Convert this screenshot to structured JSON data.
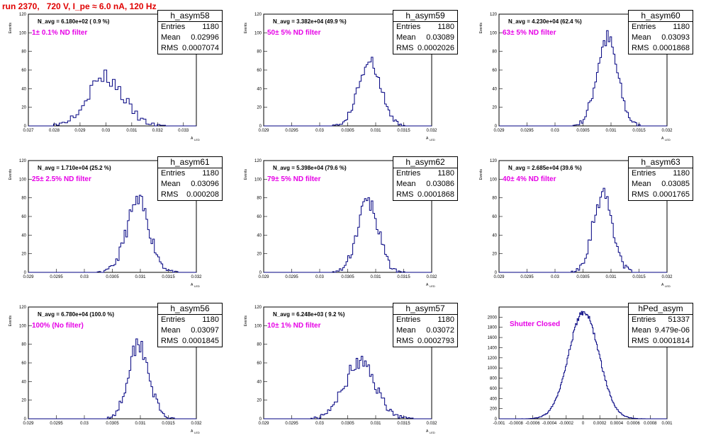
{
  "title": "run 2370,   720 V, I_pe ≈ 6.0 nA, 120 Hz",
  "colors": {
    "hist": "#000080",
    "title": "#e00000",
    "filter_label": "#e600e6"
  },
  "chart_data": [
    {
      "type": "bar",
      "hist_name": "h_asym58",
      "entries": "1180",
      "mean": "0.02996",
      "rms": "0.0007074",
      "n_avg": "N_avg = 6.180e+02 ( 0.9 %)",
      "filter_label": "1± 0.1% ND filter",
      "xlabel": "A",
      "x_sub": "LED",
      "ylabel": "Events",
      "xlim": [
        0.027,
        0.0335
      ],
      "ylim": [
        0,
        120
      ],
      "xticks": [
        "0.027",
        "0.028",
        "0.029",
        "0.03",
        "0.031",
        "0.032",
        "0.033"
      ],
      "yticks": [
        "0",
        "20",
        "40",
        "60",
        "80",
        "100",
        "120"
      ],
      "hist": {
        "mean": 0.02996,
        "rms": 0.0007074,
        "peak": 52,
        "bins": 60,
        "seed": 3
      }
    },
    {
      "type": "bar",
      "hist_name": "h_asym59",
      "entries": "1180",
      "mean": "0.03089",
      "rms": "0.0002026",
      "n_avg": "N_avg = 3.382e+04 (49.9 %)",
      "filter_label": "50± 5% ND filter",
      "xlabel": "A",
      "x_sub": "LED",
      "ylabel": "Events",
      "xlim": [
        0.029,
        0.032
      ],
      "ylim": [
        0,
        120
      ],
      "xticks": [
        "0.029",
        "0.0295",
        "0.03",
        "0.0305",
        "0.031",
        "0.0315",
        "0.032"
      ],
      "yticks": [
        "0",
        "20",
        "40",
        "60",
        "80",
        "100",
        "120"
      ],
      "hist": {
        "mean": 0.03089,
        "rms": 0.0002026,
        "peak": 67,
        "bins": 100,
        "seed": 5
      }
    },
    {
      "type": "bar",
      "hist_name": "h_asym60",
      "entries": "1180",
      "mean": "0.03093",
      "rms": "0.0001868",
      "n_avg": "N_avg = 4.230e+04 (62.4 %)",
      "filter_label": "63± 5% ND filter",
      "xlabel": "A",
      "x_sub": "LED",
      "ylabel": "Events",
      "xlim": [
        0.029,
        0.032
      ],
      "ylim": [
        0,
        120
      ],
      "xticks": [
        "0.029",
        "0.0295",
        "0.03",
        "0.0305",
        "0.031",
        "0.0315",
        "0.032"
      ],
      "yticks": [
        "0",
        "20",
        "40",
        "60",
        "80",
        "100",
        "120"
      ],
      "hist": {
        "mean": 0.03093,
        "rms": 0.0001868,
        "peak": 93,
        "bins": 100,
        "seed": 7
      }
    },
    {
      "type": "bar",
      "hist_name": "h_asym61",
      "entries": "1180",
      "mean": "0.03096",
      "rms": "0.000208",
      "n_avg": "N_avg = 1.710e+04 (25.2 %)",
      "filter_label": "25± 2.5% ND filter",
      "xlabel": "A",
      "x_sub": "LED",
      "ylabel": "Events",
      "xlim": [
        0.029,
        0.032
      ],
      "ylim": [
        0,
        120
      ],
      "xticks": [
        "0.029",
        "0.0295",
        "0.03",
        "0.0305",
        "0.031",
        "0.0315",
        "0.032"
      ],
      "yticks": [
        "0",
        "20",
        "40",
        "60",
        "80",
        "100",
        "120"
      ],
      "hist": {
        "mean": 0.03096,
        "rms": 0.000208,
        "peak": 75,
        "bins": 100,
        "seed": 11
      }
    },
    {
      "type": "bar",
      "hist_name": "h_asym62",
      "entries": "1180",
      "mean": "0.03086",
      "rms": "0.0001868",
      "n_avg": "N_avg = 5.398e+04 (79.6 %)",
      "filter_label": "79± 5% ND filter",
      "xlabel": "A",
      "x_sub": "LED",
      "ylabel": "Events",
      "xlim": [
        0.029,
        0.032
      ],
      "ylim": [
        0,
        120
      ],
      "xticks": [
        "0.029",
        "0.0295",
        "0.03",
        "0.0305",
        "0.031",
        "0.0315",
        "0.032"
      ],
      "yticks": [
        "0",
        "20",
        "40",
        "60",
        "80",
        "100",
        "120"
      ],
      "hist": {
        "mean": 0.03086,
        "rms": 0.0001868,
        "peak": 76,
        "bins": 100,
        "seed": 13
      }
    },
    {
      "type": "bar",
      "hist_name": "h_asym63",
      "entries": "1180",
      "mean": "0.03085",
      "rms": "0.0001765",
      "n_avg": "N_avg = 2.685e+04 (39.6 %)",
      "filter_label": "40± 4% ND filter",
      "xlabel": "A",
      "x_sub": "LED",
      "ylabel": "Events",
      "xlim": [
        0.029,
        0.032
      ],
      "ylim": [
        0,
        120
      ],
      "xticks": [
        "0.029",
        "0.0295",
        "0.03",
        "0.0305",
        "0.031",
        "0.0315",
        "0.032"
      ],
      "yticks": [
        "0",
        "20",
        "40",
        "60",
        "80",
        "100",
        "120"
      ],
      "hist": {
        "mean": 0.03085,
        "rms": 0.0001765,
        "peak": 85,
        "bins": 100,
        "seed": 17
      }
    },
    {
      "type": "bar",
      "hist_name": "h_asym56",
      "entries": "1180",
      "mean": "0.03097",
      "rms": "0.0001845",
      "n_avg": "N_avg = 6.780e+04 (100.0 %)",
      "filter_label": "100% (No filter)",
      "xlabel": "A",
      "x_sub": "LED",
      "ylabel": "Events",
      "xlim": [
        0.029,
        0.032
      ],
      "ylim": [
        0,
        120
      ],
      "xticks": [
        "0.029",
        "0.0295",
        "0.03",
        "0.0305",
        "0.031",
        "0.0315",
        "0.032"
      ],
      "yticks": [
        "0",
        "20",
        "40",
        "60",
        "80",
        "100",
        "120"
      ],
      "hist": {
        "mean": 0.03097,
        "rms": 0.0001845,
        "peak": 82,
        "bins": 100,
        "seed": 19
      }
    },
    {
      "type": "bar",
      "hist_name": "h_asym57",
      "entries": "1180",
      "mean": "0.03072",
      "rms": "0.0002793",
      "n_avg": "N_avg = 6.248e+03 ( 9.2 %)",
      "filter_label": "10± 1% ND filter",
      "xlabel": "A",
      "x_sub": "LED",
      "ylabel": "Events",
      "xlim": [
        0.029,
        0.032
      ],
      "ylim": [
        0,
        120
      ],
      "xticks": [
        "0.029",
        "0.0295",
        "0.03",
        "0.0305",
        "0.031",
        "0.0315",
        "0.032"
      ],
      "yticks": [
        "0",
        "20",
        "40",
        "60",
        "80",
        "100",
        "120"
      ],
      "hist": {
        "mean": 0.03072,
        "rms": 0.0002793,
        "peak": 60,
        "bins": 100,
        "seed": 23
      }
    },
    {
      "type": "bar",
      "hist_name": "hPed_asym",
      "entries": "51337",
      "mean": "9.479e-06",
      "rms": "0.0001814",
      "n_avg": "",
      "filter_label": "Shutter Closed",
      "xlabel": "",
      "x_sub": "",
      "ylabel": "",
      "xlim": [
        -0.001,
        0.001
      ],
      "ylim": [
        0,
        2200
      ],
      "xticks": [
        "-0.001",
        "-0.0008",
        "-0.0006",
        "-0.0004",
        "-0.0002",
        "0",
        "0.0002",
        "0.0004",
        "0.0006",
        "0.0008",
        "0.001"
      ],
      "yticks": [
        "0",
        "200",
        "400",
        "600",
        "800",
        "1000",
        "1200",
        "1400",
        "1600",
        "1800",
        "2000"
      ],
      "hist": {
        "mean": 9.479e-06,
        "rms": 0.0001814,
        "peak": 2100,
        "bins": 200,
        "seed": 29
      }
    }
  ]
}
